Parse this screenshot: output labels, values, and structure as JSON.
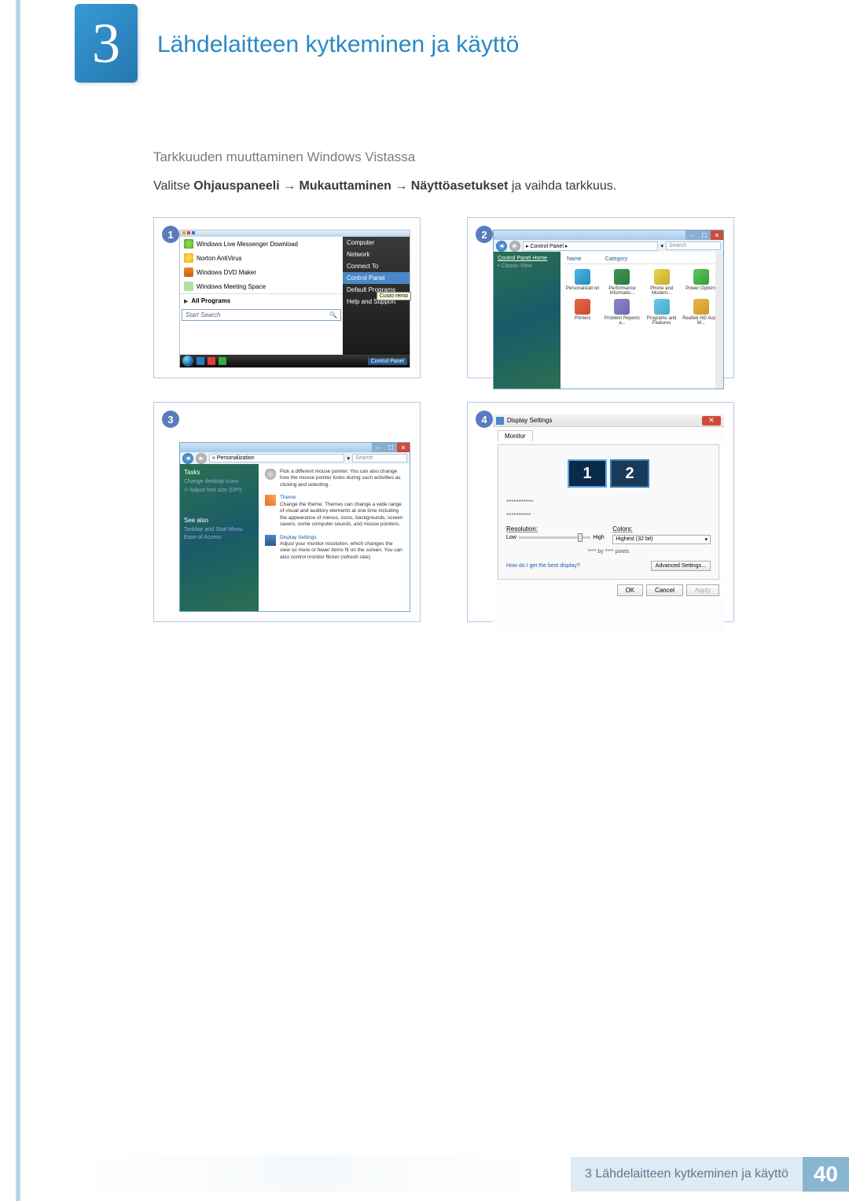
{
  "chapter": {
    "number": "3",
    "title": "Lähdelaitteen kytkeminen ja käyttö"
  },
  "subsection_heading": "Tarkkuuden muuttaminen Windows Vistassa",
  "instruction": {
    "pre": "Valitse ",
    "b1": "Ohjauspaneeli",
    "arrow": " → ",
    "b2": "Mukauttaminen",
    "b3": "Näyttöasetukset",
    "post": " ja vaihda tarkkuus."
  },
  "steps": {
    "s1": "1",
    "s2": "2",
    "s3": "3",
    "s4": "4"
  },
  "step1": {
    "left_items": [
      "Windows Live Messenger Download",
      "Norton AntiVirus",
      "Windows DVD Maker",
      "Windows Meeting Space"
    ],
    "all_programs": "All Programs",
    "search_placeholder": "Start Search",
    "right_items": [
      "Computer",
      "Network",
      "Connect To",
      "Control Panel",
      "Default Programs",
      "Help and Support"
    ],
    "right_highlight_idx": 3,
    "tooltip": "Custo\nremo",
    "taskbar_label": "Control Panel"
  },
  "step2": {
    "crumb": "▸ Control Panel ▸",
    "search": "Search",
    "side_heading": "Control Panel Home",
    "side_link": "Classic View",
    "col_headers": [
      "Name",
      "Category"
    ],
    "icons": [
      "Personalizati on",
      "Performance Informatio...",
      "Phone and Modem...",
      "Power Options",
      "Printers",
      "Problem Reports a...",
      "Programs and Features",
      "Realtek HD Audio M..."
    ]
  },
  "step3": {
    "crumb": "« Personalization",
    "search": "Search",
    "side": {
      "tasks": "Tasks",
      "l1": "Change desktop icons",
      "l2": "Adjust font size (DPI)",
      "see_also": "See also",
      "l3": "Taskbar and Start Menu",
      "l4": "Ease of Access"
    },
    "main": {
      "m1_text": "Pick a different mouse pointer. You can also change how the mouse pointer looks during such activities as clicking and selecting.",
      "m2_title": "Theme",
      "m2_text": "Change the theme. Themes can change a wide range of visual and auditory elements at one time including the appearance of menus, icons, backgrounds, screen savers, some computer sounds, and mouse pointers.",
      "m3_title": "Display Settings",
      "m3_text": "Adjust your monitor resolution, which changes the view so more or fewer items fit on the screen. You can also control monitor flicker (refresh rate)."
    }
  },
  "step4": {
    "title": "Display Settings",
    "tab": "Monitor",
    "mon1": "1",
    "mon2": "2",
    "stars1": "***********",
    "stars2": "**********",
    "res_label": "Resolution:",
    "low": "Low",
    "high": "High",
    "pixels": "**** by **** pixels",
    "colors_label": "Colors:",
    "colors_value": "Highest (32 bit)",
    "help_link": "How do I get the best display?",
    "adv_btn": "Advanced Settings...",
    "ok": "OK",
    "cancel": "Cancel",
    "apply": "Apply"
  },
  "footer": {
    "text": "3 Lähdelaitteen kytkeminen ja käyttö",
    "page": "40"
  }
}
